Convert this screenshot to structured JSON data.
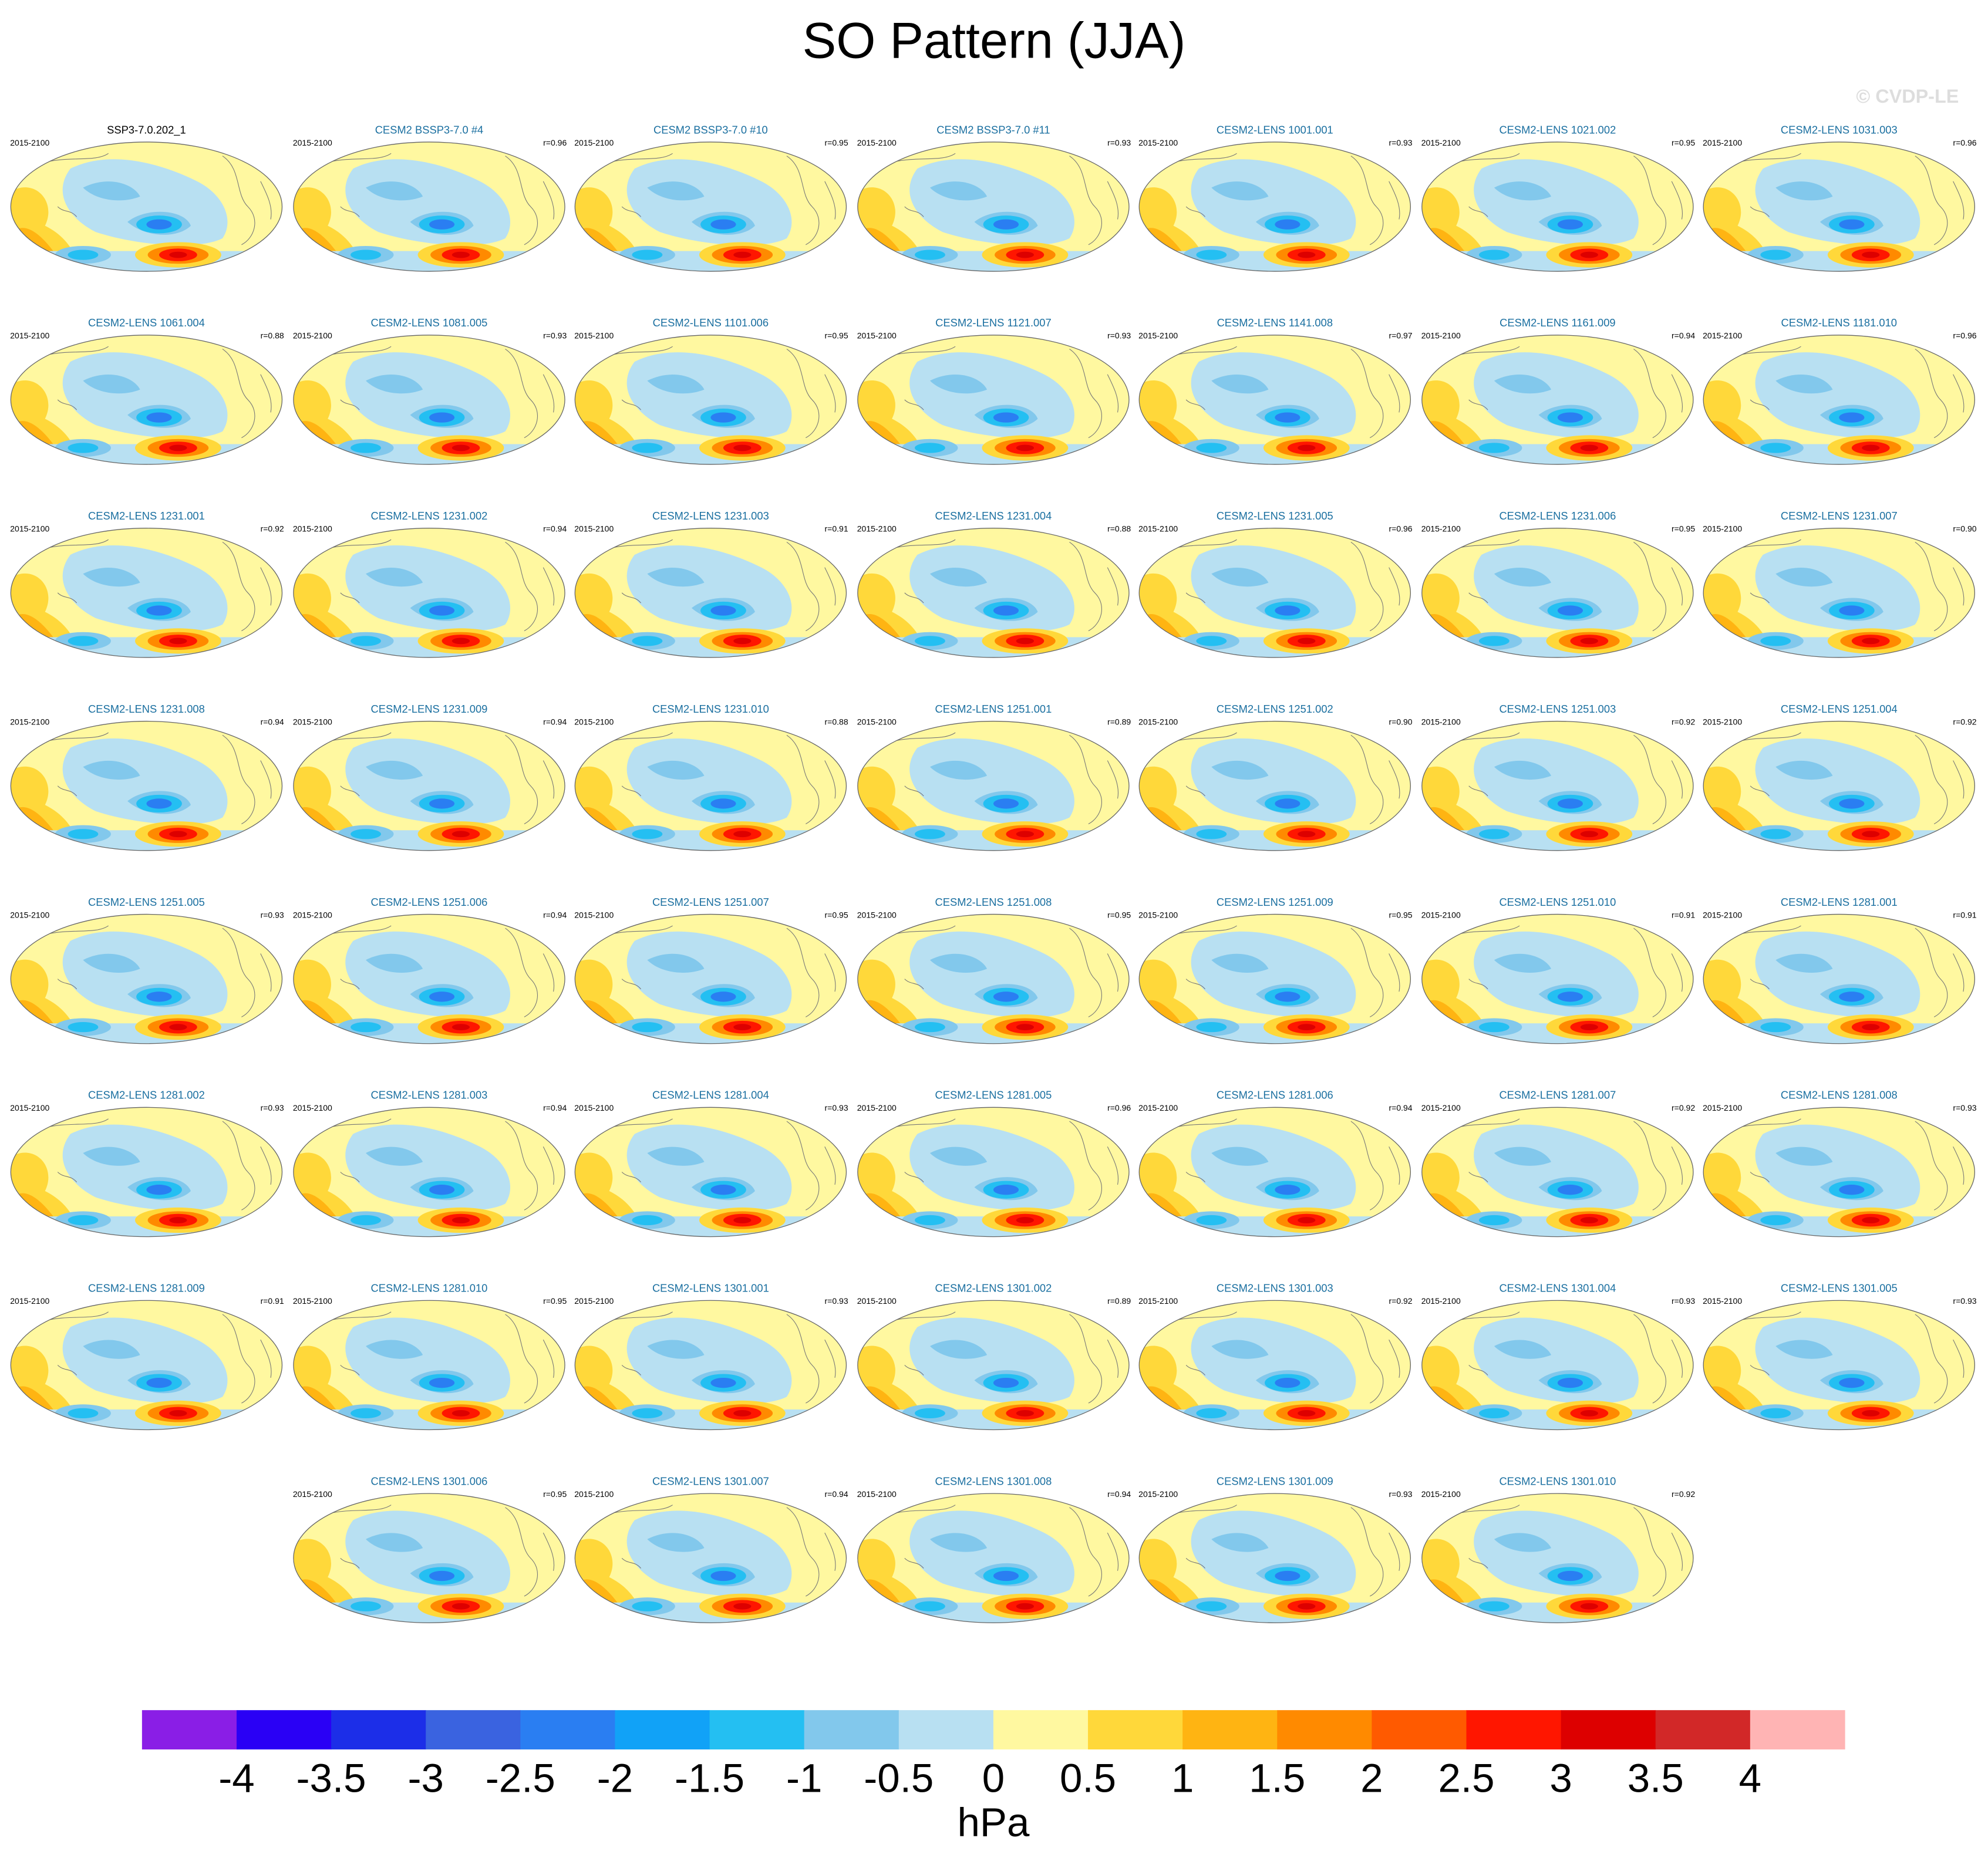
{
  "header": {
    "title": "SO Pattern (JJA)",
    "watermark": "© CVDP-LE"
  },
  "panels": [
    {
      "title": "SSP3-7.0.202_1",
      "period": "2015-2100"
    },
    {
      "title": "CESM2 BSSP3-7.0 #4",
      "period": "2015-2100",
      "r": "r=0.96"
    },
    {
      "title": "CESM2 BSSP3-7.0 #10",
      "period": "2015-2100",
      "r": "r=0.95"
    },
    {
      "title": "CESM2 BSSP3-7.0 #11",
      "period": "2015-2100",
      "r": "r=0.93"
    },
    {
      "title": "CESM2-LENS 1001.001",
      "period": "2015-2100",
      "r": "r=0.93"
    },
    {
      "title": "CESM2-LENS 1021.002",
      "period": "2015-2100",
      "r": "r=0.95"
    },
    {
      "title": "CESM2-LENS 1031.003",
      "period": "2015-2100",
      "r": "r=0.96"
    },
    {
      "title": "CESM2-LENS 1061.004",
      "period": "2015-2100",
      "r": "r=0.88"
    },
    {
      "title": "CESM2-LENS 1081.005",
      "period": "2015-2100",
      "r": "r=0.93"
    },
    {
      "title": "CESM2-LENS 1101.006",
      "period": "2015-2100",
      "r": "r=0.95"
    },
    {
      "title": "CESM2-LENS 1121.007",
      "period": "2015-2100",
      "r": "r=0.93"
    },
    {
      "title": "CESM2-LENS 1141.008",
      "period": "2015-2100",
      "r": "r=0.97"
    },
    {
      "title": "CESM2-LENS 1161.009",
      "period": "2015-2100",
      "r": "r=0.94"
    },
    {
      "title": "CESM2-LENS 1181.010",
      "period": "2015-2100",
      "r": "r=0.96"
    },
    {
      "title": "CESM2-LENS 1231.001",
      "period": "2015-2100",
      "r": "r=0.92"
    },
    {
      "title": "CESM2-LENS 1231.002",
      "period": "2015-2100",
      "r": "r=0.94"
    },
    {
      "title": "CESM2-LENS 1231.003",
      "period": "2015-2100",
      "r": "r=0.91"
    },
    {
      "title": "CESM2-LENS 1231.004",
      "period": "2015-2100",
      "r": "r=0.88"
    },
    {
      "title": "CESM2-LENS 1231.005",
      "period": "2015-2100",
      "r": "r=0.96"
    },
    {
      "title": "CESM2-LENS 1231.006",
      "period": "2015-2100",
      "r": "r=0.95"
    },
    {
      "title": "CESM2-LENS 1231.007",
      "period": "2015-2100",
      "r": "r=0.90"
    },
    {
      "title": "CESM2-LENS 1231.008",
      "period": "2015-2100",
      "r": "r=0.94"
    },
    {
      "title": "CESM2-LENS 1231.009",
      "period": "2015-2100",
      "r": "r=0.94"
    },
    {
      "title": "CESM2-LENS 1231.010",
      "period": "2015-2100",
      "r": "r=0.88"
    },
    {
      "title": "CESM2-LENS 1251.001",
      "period": "2015-2100",
      "r": "r=0.89"
    },
    {
      "title": "CESM2-LENS 1251.002",
      "period": "2015-2100",
      "r": "r=0.90"
    },
    {
      "title": "CESM2-LENS 1251.003",
      "period": "2015-2100",
      "r": "r=0.92"
    },
    {
      "title": "CESM2-LENS 1251.004",
      "period": "2015-2100",
      "r": "r=0.92"
    },
    {
      "title": "CESM2-LENS 1251.005",
      "period": "2015-2100",
      "r": "r=0.93"
    },
    {
      "title": "CESM2-LENS 1251.006",
      "period": "2015-2100",
      "r": "r=0.94"
    },
    {
      "title": "CESM2-LENS 1251.007",
      "period": "2015-2100",
      "r": "r=0.95"
    },
    {
      "title": "CESM2-LENS 1251.008",
      "period": "2015-2100",
      "r": "r=0.95"
    },
    {
      "title": "CESM2-LENS 1251.009",
      "period": "2015-2100",
      "r": "r=0.95"
    },
    {
      "title": "CESM2-LENS 1251.010",
      "period": "2015-2100",
      "r": "r=0.91"
    },
    {
      "title": "CESM2-LENS 1281.001",
      "period": "2015-2100",
      "r": "r=0.91"
    },
    {
      "title": "CESM2-LENS 1281.002",
      "period": "2015-2100",
      "r": "r=0.93"
    },
    {
      "title": "CESM2-LENS 1281.003",
      "period": "2015-2100",
      "r": "r=0.94"
    },
    {
      "title": "CESM2-LENS 1281.004",
      "period": "2015-2100",
      "r": "r=0.93"
    },
    {
      "title": "CESM2-LENS 1281.005",
      "period": "2015-2100",
      "r": "r=0.96"
    },
    {
      "title": "CESM2-LENS 1281.006",
      "period": "2015-2100",
      "r": "r=0.94"
    },
    {
      "title": "CESM2-LENS 1281.007",
      "period": "2015-2100",
      "r": "r=0.92"
    },
    {
      "title": "CESM2-LENS 1281.008",
      "period": "2015-2100",
      "r": "r=0.93"
    },
    {
      "title": "CESM2-LENS 1281.009",
      "period": "2015-2100",
      "r": "r=0.91"
    },
    {
      "title": "CESM2-LENS 1281.010",
      "period": "2015-2100",
      "r": "r=0.95"
    },
    {
      "title": "CESM2-LENS 1301.001",
      "period": "2015-2100",
      "r": "r=0.93"
    },
    {
      "title": "CESM2-LENS 1301.002",
      "period": "2015-2100",
      "r": "r=0.89"
    },
    {
      "title": "CESM2-LENS 1301.003",
      "period": "2015-2100",
      "r": "r=0.92"
    },
    {
      "title": "CESM2-LENS 1301.004",
      "period": "2015-2100",
      "r": "r=0.93"
    },
    {
      "title": "CESM2-LENS 1301.005",
      "period": "2015-2100",
      "r": "r=0.93"
    },
    {
      "title": "CESM2-LENS 1301.006",
      "period": "2015-2100",
      "r": "r=0.95"
    },
    {
      "title": "CESM2-LENS 1301.007",
      "period": "2015-2100",
      "r": "r=0.94"
    },
    {
      "title": "CESM2-LENS 1301.008",
      "period": "2015-2100",
      "r": "r=0.94"
    },
    {
      "title": "CESM2-LENS 1301.009",
      "period": "2015-2100",
      "r": "r=0.93"
    },
    {
      "title": "CESM2-LENS 1301.010",
      "period": "2015-2100",
      "r": "r=0.92"
    }
  ],
  "colorbar": {
    "colors": [
      "#8a1ee6",
      "#2a00f5",
      "#1c2ee8",
      "#3a63e0",
      "#2a7ef2",
      "#11a2f7",
      "#24bff2",
      "#82c8ec",
      "#b8e0f2",
      "#fff8a0",
      "#ffd83a",
      "#ffb412",
      "#ff8a00",
      "#ff5a00",
      "#ff1600",
      "#dd0000",
      "#d22828",
      "#ffb4b4"
    ],
    "ticks": [
      -4,
      -3.5,
      -3,
      -2.5,
      -2,
      -1.5,
      -1,
      -0.5,
      0,
      0.5,
      1,
      1.5,
      2,
      2.5,
      3,
      3.5,
      4
    ],
    "units": "hPa"
  }
}
